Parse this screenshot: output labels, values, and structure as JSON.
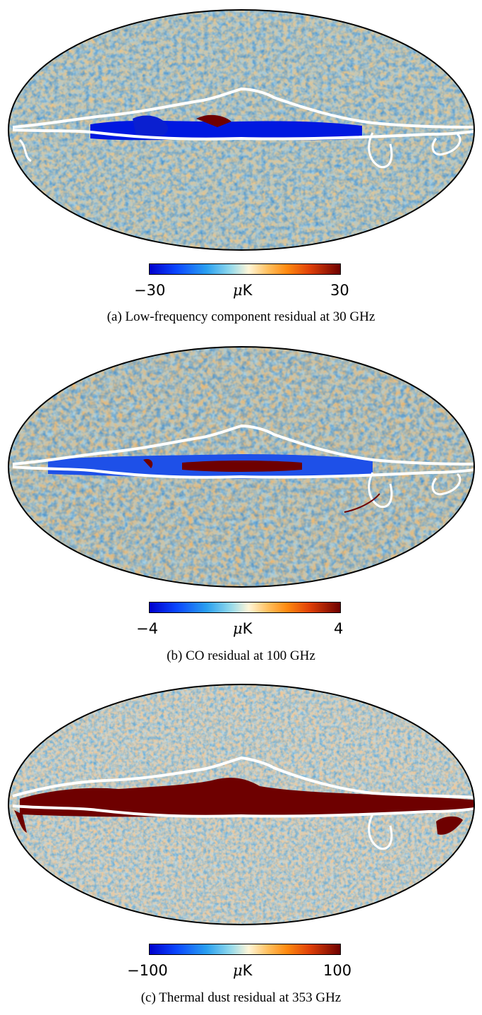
{
  "panels": [
    {
      "id": "a",
      "caption": "(a)  Low-frequency component residual at 30 GHz",
      "colorbar": {
        "min_label": "−30",
        "max_label": "30",
        "unit_prefix": "μ",
        "unit_suffix": "K",
        "range": [
          -30,
          30
        ]
      },
      "map_style": "low-frequency residual: strong negative (blue) Galactic plane band"
    },
    {
      "id": "b",
      "caption": "(b)  CO residual at 100 GHz",
      "colorbar": {
        "min_label": "−4",
        "max_label": "4",
        "unit_prefix": "μ",
        "unit_suffix": "K",
        "range": [
          -4,
          4
        ]
      },
      "map_style": "CO residual: blue Galactic plane with dark red core"
    },
    {
      "id": "c",
      "caption": "(c)  Thermal dust residual at 353 GHz",
      "colorbar": {
        "min_label": "−100",
        "max_label": "100",
        "unit_prefix": "μ",
        "unit_suffix": "K",
        "range": [
          -100,
          100
        ]
      },
      "map_style": "thermal dust residual: saturated dark red Galactic plane"
    }
  ],
  "colors": {
    "min": "#0000cc",
    "low": "#2aa0f0",
    "mid": "#fff6d8",
    "high": "#ff8a10",
    "max": "#6e0000",
    "mask": "#ffffff"
  }
}
